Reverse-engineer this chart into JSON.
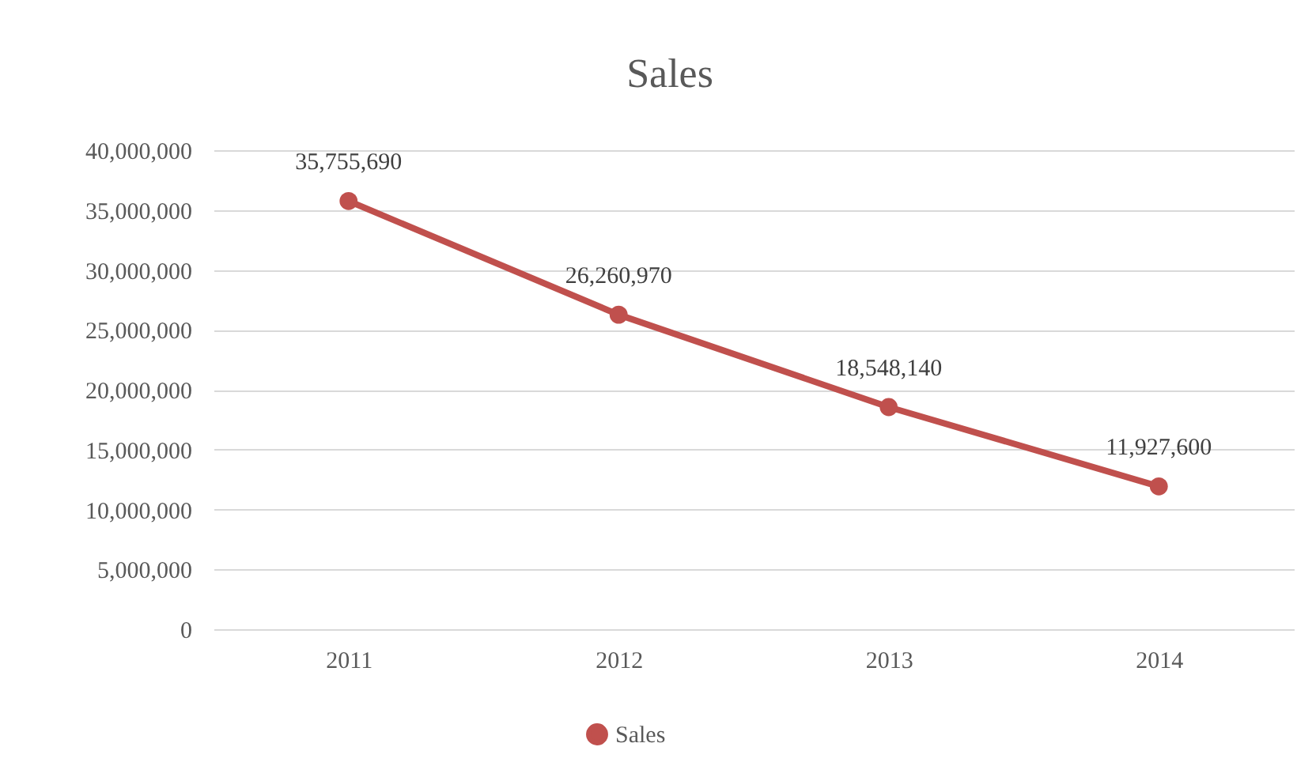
{
  "chart_data": {
    "type": "line",
    "title": "Sales",
    "categories": [
      "2011",
      "2012",
      "2013",
      "2014"
    ],
    "series": [
      {
        "name": "Sales",
        "color": "#c0504d",
        "values": [
          35755690,
          26260970,
          18548140,
          11927600
        ],
        "value_labels": [
          "35,755,690",
          "26,260,970",
          "18,548,140",
          "11,927,600"
        ]
      }
    ],
    "ylim": [
      0,
      40000000
    ],
    "yticks": [
      {
        "value": 0,
        "label": "0"
      },
      {
        "value": 5000000,
        "label": "5,000,000"
      },
      {
        "value": 10000000,
        "label": "10,000,000"
      },
      {
        "value": 15000000,
        "label": "15,000,000"
      },
      {
        "value": 20000000,
        "label": "20,000,000"
      },
      {
        "value": 25000000,
        "label": "25,000,000"
      },
      {
        "value": 30000000,
        "label": "30,000,000"
      },
      {
        "value": 35000000,
        "label": "35,000,000"
      },
      {
        "value": 40000000,
        "label": "40,000,000"
      }
    ],
    "grid": "y",
    "legend": "bottom",
    "marker": "circle",
    "line_style": "solid"
  }
}
